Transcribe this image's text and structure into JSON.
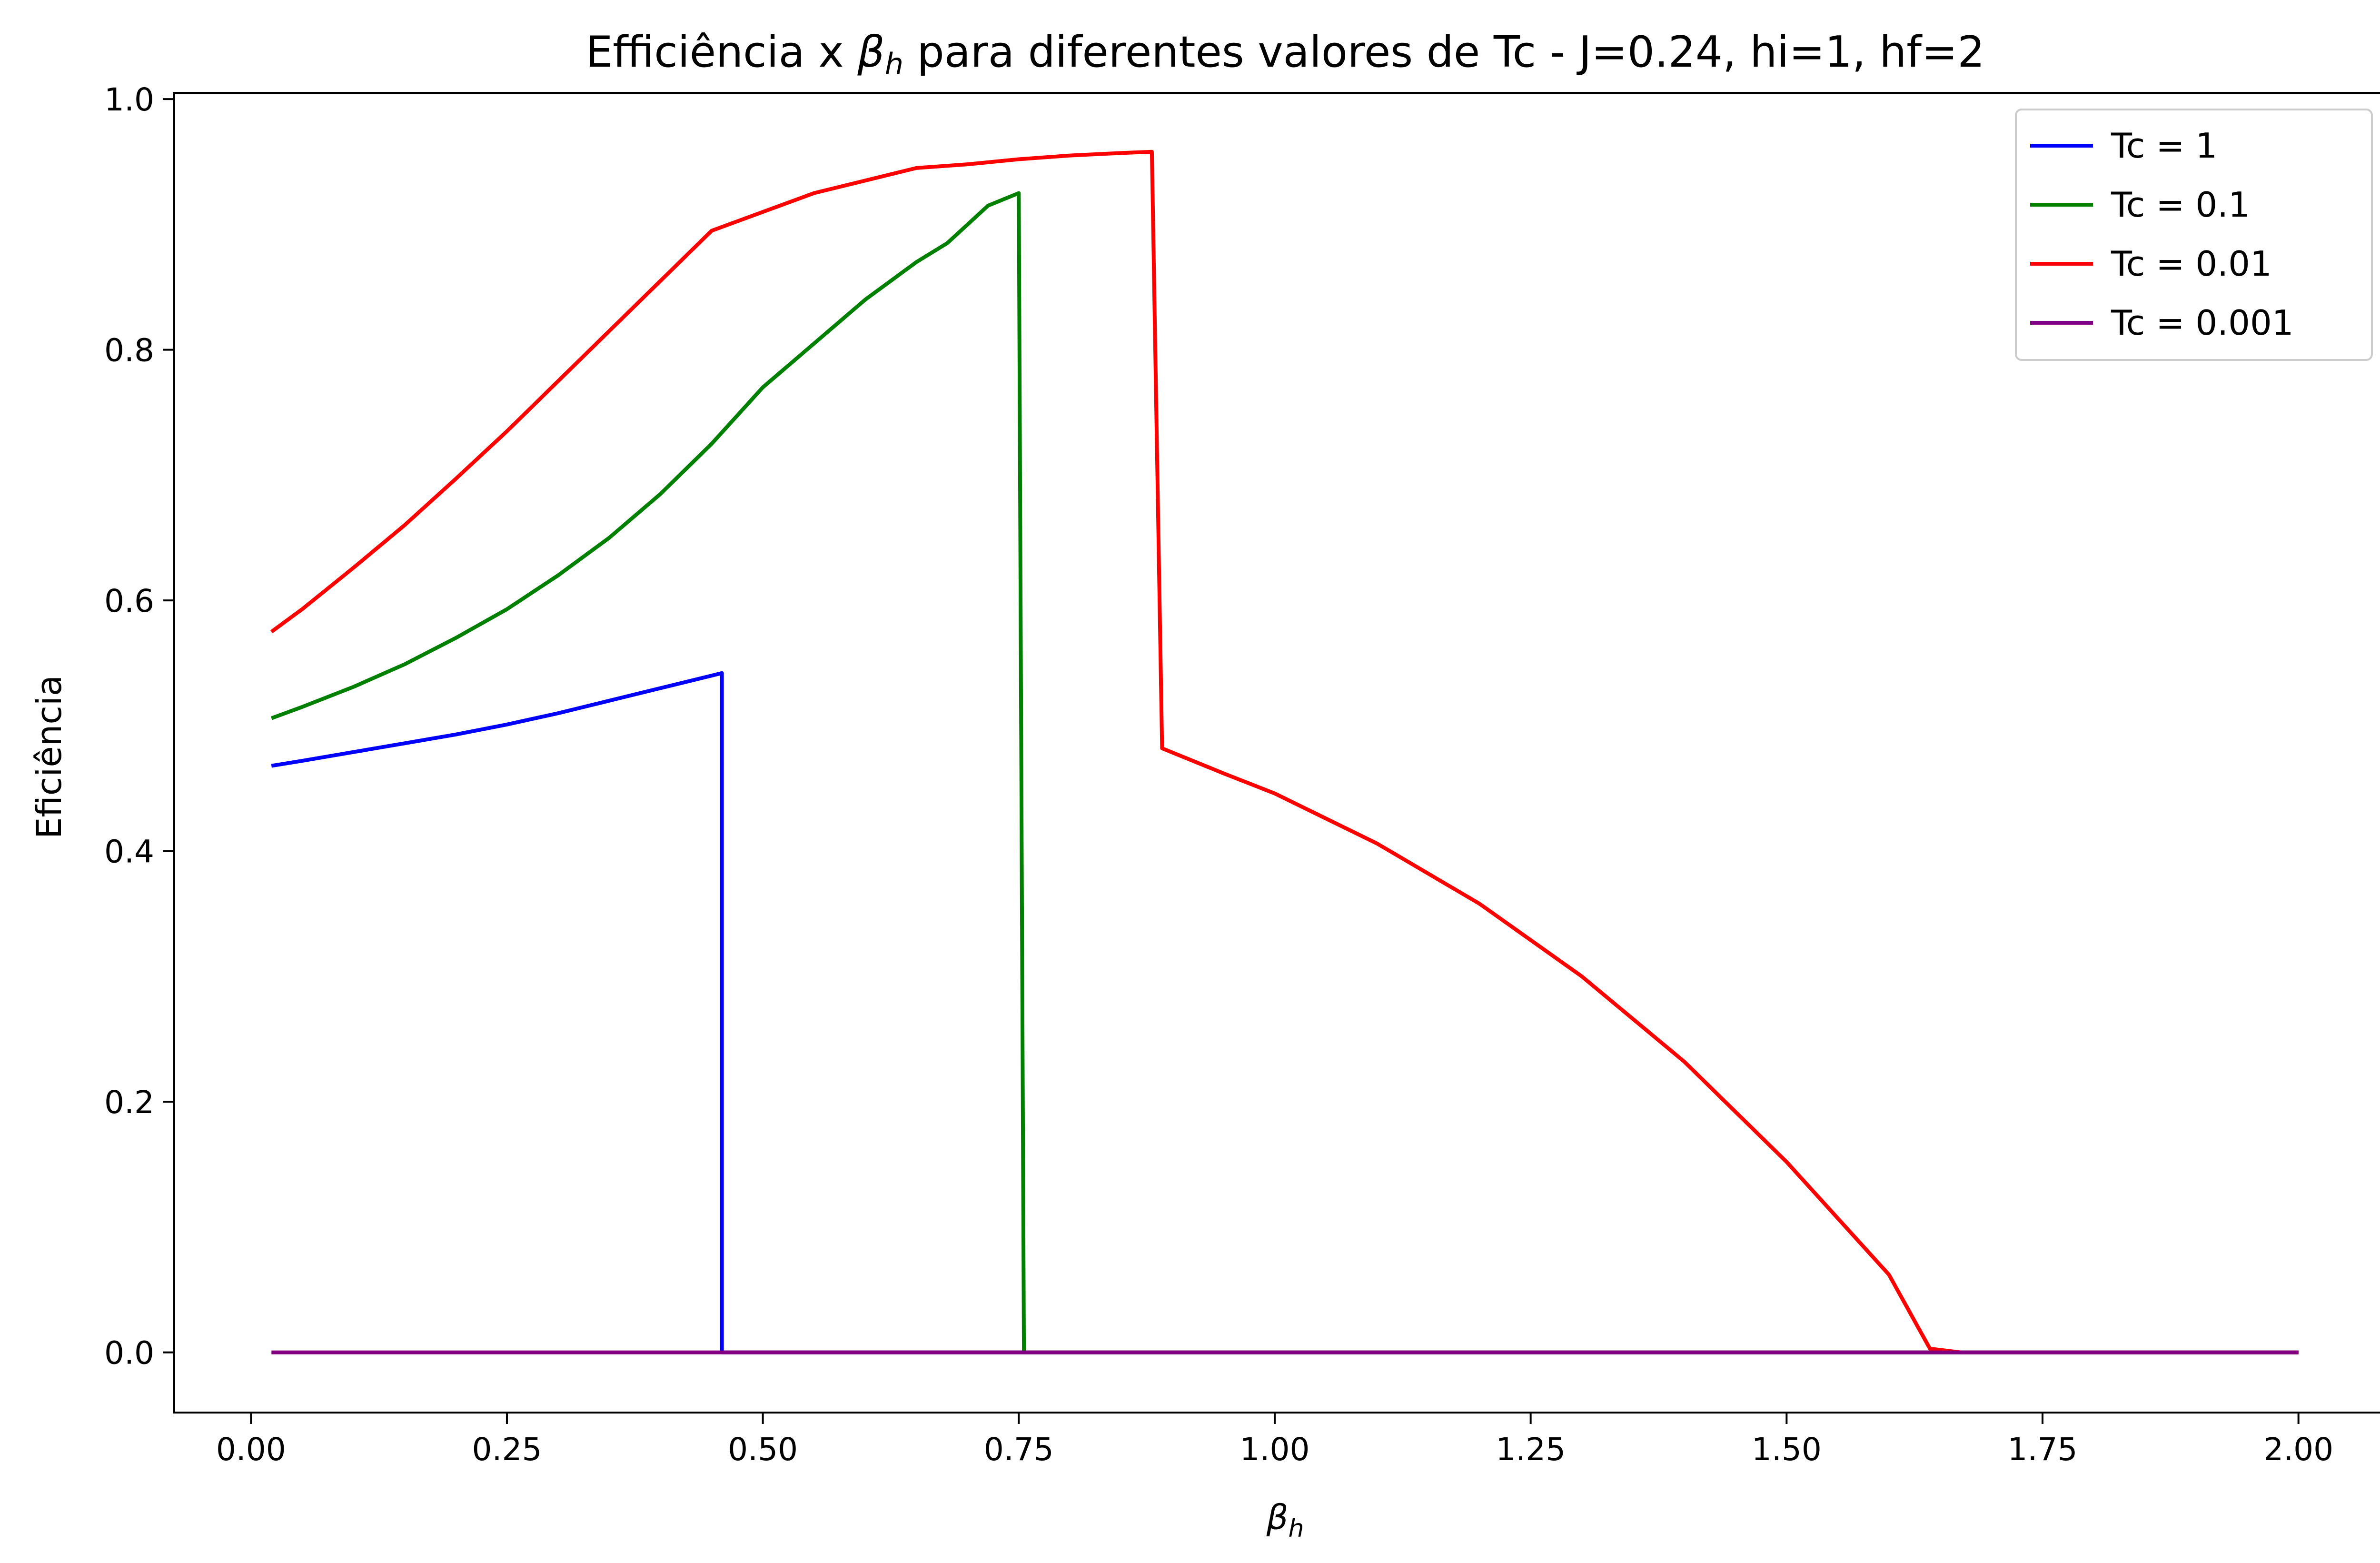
{
  "chart_data": {
    "type": "line",
    "title_prefix": "Efficiência x ",
    "title_symbol": "β",
    "title_symbol_sub": "h",
    "title_suffix": " para diferentes valores de Tc - J=0.24, hi=1, hf=2",
    "xlabel_symbol": "β",
    "xlabel_sub": "h",
    "ylabel": "Eficiência",
    "xlim": [
      -0.075,
      2.095
    ],
    "ylim": [
      -0.048,
      1.005
    ],
    "xticks": [
      0.0,
      0.25,
      0.5,
      0.75,
      1.0,
      1.25,
      1.5,
      1.75,
      2.0
    ],
    "xtick_labels": [
      "0.00",
      "0.25",
      "0.50",
      "0.75",
      "1.00",
      "1.25",
      "1.50",
      "1.75",
      "2.00"
    ],
    "yticks": [
      0.0,
      0.2,
      0.4,
      0.6,
      0.8,
      1.0
    ],
    "ytick_labels": [
      "0.0",
      "0.2",
      "0.4",
      "0.6",
      "0.8",
      "1.0"
    ],
    "grid": false,
    "legend_position": "top-right",
    "series": [
      {
        "name": "Tc = 1",
        "color": "#0000ff",
        "x": [
          0.02,
          0.05,
          0.1,
          0.15,
          0.2,
          0.25,
          0.3,
          0.35,
          0.4,
          0.45,
          0.46,
          0.46,
          0.47,
          0.5,
          0.75,
          1.0,
          1.25,
          1.5,
          1.75,
          2.0
        ],
        "y": [
          0.468,
          0.472,
          0.479,
          0.486,
          0.493,
          0.501,
          0.51,
          0.52,
          0.53,
          0.54,
          0.542,
          0.0,
          0.0,
          0.0,
          0.0,
          0.0,
          0.0,
          0.0,
          0.0,
          0.0
        ]
      },
      {
        "name": "Tc = 0.1",
        "color": "#008000",
        "x": [
          0.02,
          0.05,
          0.1,
          0.15,
          0.2,
          0.25,
          0.3,
          0.35,
          0.4,
          0.45,
          0.5,
          0.55,
          0.6,
          0.65,
          0.68,
          0.7,
          0.72,
          0.75,
          0.755,
          0.77,
          1.0,
          1.25,
          1.5,
          1.75,
          2.0
        ],
        "y": [
          0.506,
          0.515,
          0.531,
          0.549,
          0.57,
          0.593,
          0.62,
          0.65,
          0.685,
          0.725,
          0.77,
          0.805,
          0.84,
          0.87,
          0.885,
          0.9,
          0.915,
          0.925,
          0.0,
          0.0,
          0.0,
          0.0,
          0.0,
          0.0,
          0.0
        ]
      },
      {
        "name": "Tc = 0.01",
        "color": "#ff0000",
        "x": [
          0.02,
          0.05,
          0.1,
          0.15,
          0.2,
          0.25,
          0.3,
          0.35,
          0.4,
          0.45,
          0.5,
          0.55,
          0.6,
          0.65,
          0.7,
          0.75,
          0.8,
          0.85,
          0.88,
          0.89,
          0.95,
          1.0,
          1.1,
          1.2,
          1.3,
          1.4,
          1.5,
          1.6,
          1.64,
          1.67,
          1.75,
          2.0
        ],
        "y": [
          0.575,
          0.593,
          0.626,
          0.66,
          0.697,
          0.735,
          0.775,
          0.815,
          0.855,
          0.895,
          0.91,
          0.925,
          0.935,
          0.945,
          0.948,
          0.952,
          0.955,
          0.957,
          0.958,
          0.482,
          0.462,
          0.446,
          0.406,
          0.358,
          0.3,
          0.232,
          0.152,
          0.062,
          0.003,
          0.0,
          0.0,
          0.0
        ]
      },
      {
        "name": "Tc = 0.001",
        "color": "#800080",
        "x": [
          0.02,
          0.5,
          1.0,
          1.5,
          2.0
        ],
        "y": [
          0.0,
          0.0,
          0.0,
          0.0,
          0.0
        ]
      }
    ]
  }
}
